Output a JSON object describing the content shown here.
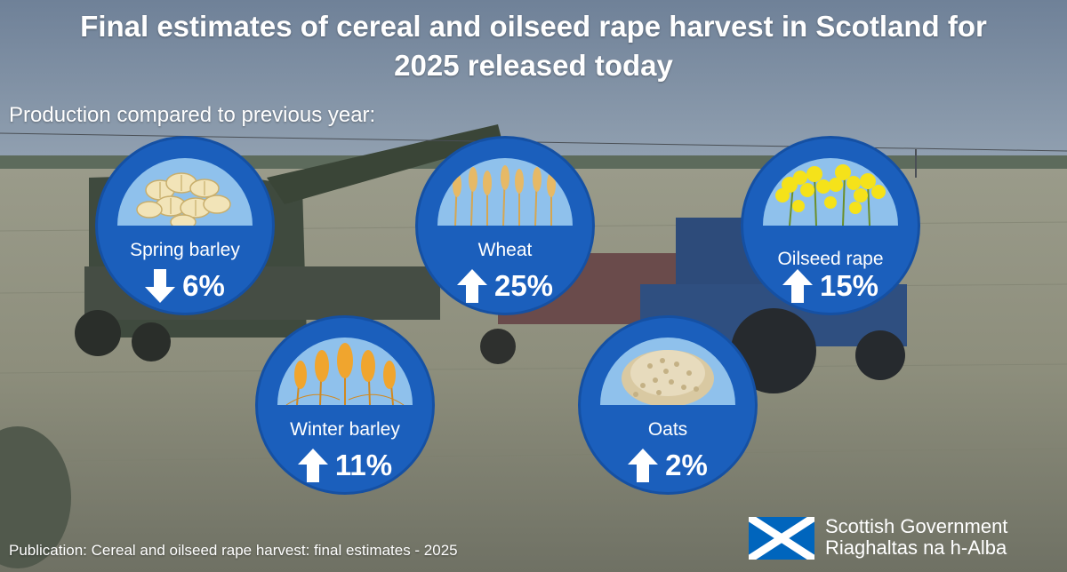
{
  "header": {
    "title_line1": "Final estimates of cereal and oilseed rape harvest in Scotland for",
    "title_line2": "2025 released today",
    "subtitle": "Production compared to previous year:"
  },
  "crops": [
    {
      "name": "Spring barley",
      "change": "6%",
      "direction": "down",
      "icon": "barley-grains-icon"
    },
    {
      "name": "Wheat",
      "change": "25%",
      "direction": "up",
      "icon": "wheat-ears-icon"
    },
    {
      "name": "Oilseed rape",
      "change": "15%",
      "direction": "up",
      "icon": "rapeseed-flowers-icon"
    },
    {
      "name": "Winter barley",
      "change": "11%",
      "direction": "up",
      "icon": "barley-ears-icon"
    },
    {
      "name": "Oats",
      "change": "2%",
      "direction": "up",
      "icon": "oat-pile-icon"
    }
  ],
  "footer": {
    "publication": "Publication: Cereal and oilseed rape harvest: final estimates - 2025",
    "logo_line1": "Scottish Government",
    "logo_line2": "Riaghaltas na h-Alba"
  },
  "colors": {
    "circle_fill": "#1b5fbc",
    "dome_fill": "#8fc1ec",
    "text": "#ffffff",
    "flag_blue": "#0065bd"
  }
}
